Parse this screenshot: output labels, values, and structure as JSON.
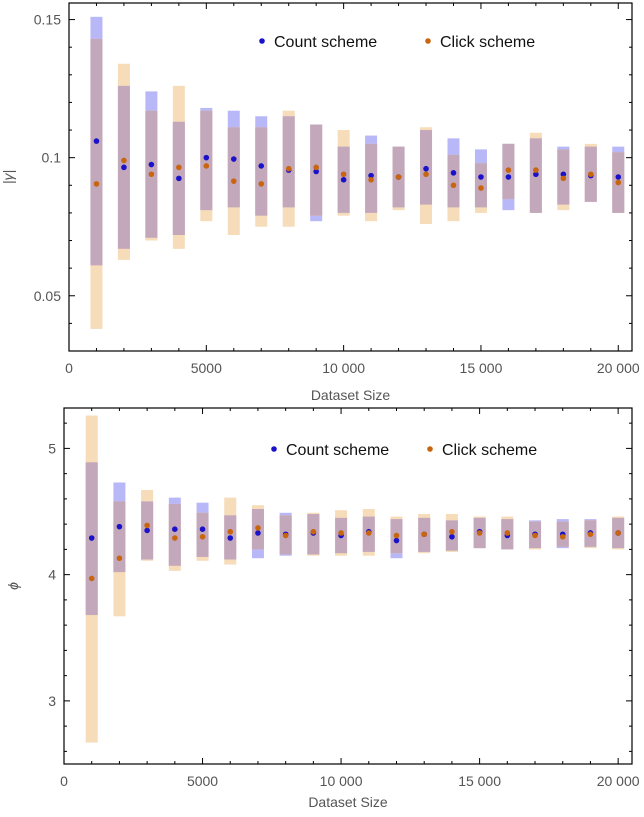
{
  "colors": {
    "count_point": "#1a12c8",
    "click_point": "#c8650f",
    "count_band": "#b8b8f8",
    "click_band": "#f6dcb8",
    "overlap_band": "#c3a8bc",
    "axis": "#000000",
    "tick_text": "#555555"
  },
  "chart_data": [
    {
      "type": "scatter",
      "xlabel": "Dataset Size",
      "ylabel": "|γ|",
      "xlim": [
        0,
        20500
      ],
      "ylim": [
        0.03,
        0.156
      ],
      "xticks": [
        0,
        5000,
        10000,
        15000,
        20000
      ],
      "xtick_labels": [
        "0",
        "5000",
        "10 000",
        "15 000",
        "20 000"
      ],
      "yticks": [
        0.05,
        0.1,
        0.15
      ],
      "ytick_labels": [
        "0.05",
        "0.1",
        "0.15"
      ],
      "grid": false,
      "legend_position": "top-right",
      "x": [
        1000,
        2000,
        3000,
        4000,
        5000,
        6000,
        7000,
        8000,
        9000,
        10000,
        11000,
        12000,
        13000,
        14000,
        15000,
        16000,
        17000,
        18000,
        19000,
        20000
      ],
      "series": [
        {
          "name": "Count scheme",
          "values": [
            0.106,
            0.0965,
            0.0975,
            0.0925,
            0.1,
            0.0995,
            0.097,
            0.0955,
            0.095,
            0.092,
            0.0935,
            0.093,
            0.096,
            0.0945,
            0.093,
            0.093,
            0.094,
            0.094,
            0.0935,
            0.093
          ],
          "lower": [
            0.061,
            0.067,
            0.071,
            0.072,
            0.081,
            0.082,
            0.079,
            0.082,
            0.077,
            0.08,
            0.08,
            0.082,
            0.083,
            0.082,
            0.082,
            0.081,
            0.08,
            0.083,
            0.084,
            0.08
          ],
          "upper": [
            0.151,
            0.126,
            0.124,
            0.113,
            0.118,
            0.117,
            0.115,
            0.115,
            0.112,
            0.104,
            0.108,
            0.104,
            0.11,
            0.107,
            0.103,
            0.105,
            0.107,
            0.104,
            0.104,
            0.104
          ]
        },
        {
          "name": "Click scheme",
          "values": [
            0.0905,
            0.099,
            0.094,
            0.0965,
            0.097,
            0.0915,
            0.0905,
            0.096,
            0.0965,
            0.094,
            0.092,
            0.093,
            0.094,
            0.09,
            0.089,
            0.0955,
            0.0955,
            0.0925,
            0.094,
            0.091
          ],
          "lower": [
            0.038,
            0.063,
            0.07,
            0.067,
            0.077,
            0.072,
            0.075,
            0.075,
            0.079,
            0.079,
            0.077,
            0.081,
            0.076,
            0.077,
            0.08,
            0.085,
            0.08,
            0.081,
            0.084,
            0.08
          ],
          "upper": [
            0.143,
            0.134,
            0.117,
            0.126,
            0.117,
            0.111,
            0.111,
            0.117,
            0.112,
            0.11,
            0.105,
            0.104,
            0.111,
            0.101,
            0.098,
            0.105,
            0.109,
            0.103,
            0.105,
            0.102
          ]
        }
      ]
    },
    {
      "type": "scatter",
      "xlabel": "Dataset Size",
      "ylabel": "ϕ",
      "xlim": [
        0,
        20500
      ],
      "ylim": [
        2.5,
        5.32
      ],
      "xticks": [
        0,
        5000,
        10000,
        15000,
        20000
      ],
      "xtick_labels": [
        "0",
        "5000",
        "10 000",
        "15 000",
        "20 000"
      ],
      "yticks": [
        3,
        4,
        5
      ],
      "ytick_labels": [
        "3",
        "4",
        "5"
      ],
      "grid": false,
      "legend_position": "top-right",
      "x": [
        1000,
        2000,
        3000,
        4000,
        5000,
        6000,
        7000,
        8000,
        9000,
        10000,
        11000,
        12000,
        13000,
        14000,
        15000,
        16000,
        17000,
        18000,
        19000,
        20000
      ],
      "series": [
        {
          "name": "Count scheme",
          "values": [
            4.29,
            4.38,
            4.35,
            4.36,
            4.36,
            4.29,
            4.33,
            4.32,
            4.33,
            4.31,
            4.34,
            4.27,
            4.32,
            4.3,
            4.34,
            4.31,
            4.32,
            4.32,
            4.33,
            4.33
          ],
          "lower": [
            3.68,
            4.02,
            4.12,
            4.07,
            4.14,
            4.12,
            4.13,
            4.15,
            4.16,
            4.17,
            4.18,
            4.13,
            4.18,
            4.19,
            4.21,
            4.2,
            4.21,
            4.21,
            4.22,
            4.21
          ],
          "upper": [
            4.89,
            4.73,
            4.58,
            4.61,
            4.57,
            4.47,
            4.52,
            4.49,
            4.48,
            4.45,
            4.46,
            4.44,
            4.45,
            4.43,
            4.45,
            4.44,
            4.43,
            4.44,
            4.44,
            4.45
          ]
        },
        {
          "name": "Click scheme",
          "values": [
            3.97,
            4.13,
            4.39,
            4.29,
            4.3,
            4.34,
            4.37,
            4.31,
            4.34,
            4.33,
            4.33,
            4.31,
            4.32,
            4.34,
            4.33,
            4.33,
            4.31,
            4.3,
            4.32,
            4.33
          ],
          "lower": [
            2.67,
            3.67,
            4.11,
            4.03,
            4.11,
            4.08,
            4.2,
            4.16,
            4.15,
            4.15,
            4.15,
            4.17,
            4.17,
            4.18,
            4.21,
            4.2,
            4.2,
            4.22,
            4.21,
            4.2
          ],
          "upper": [
            5.26,
            4.58,
            4.67,
            4.56,
            4.49,
            4.61,
            4.55,
            4.47,
            4.49,
            4.51,
            4.52,
            4.46,
            4.48,
            4.48,
            4.46,
            4.46,
            4.42,
            4.42,
            4.43,
            4.46
          ]
        }
      ]
    }
  ]
}
